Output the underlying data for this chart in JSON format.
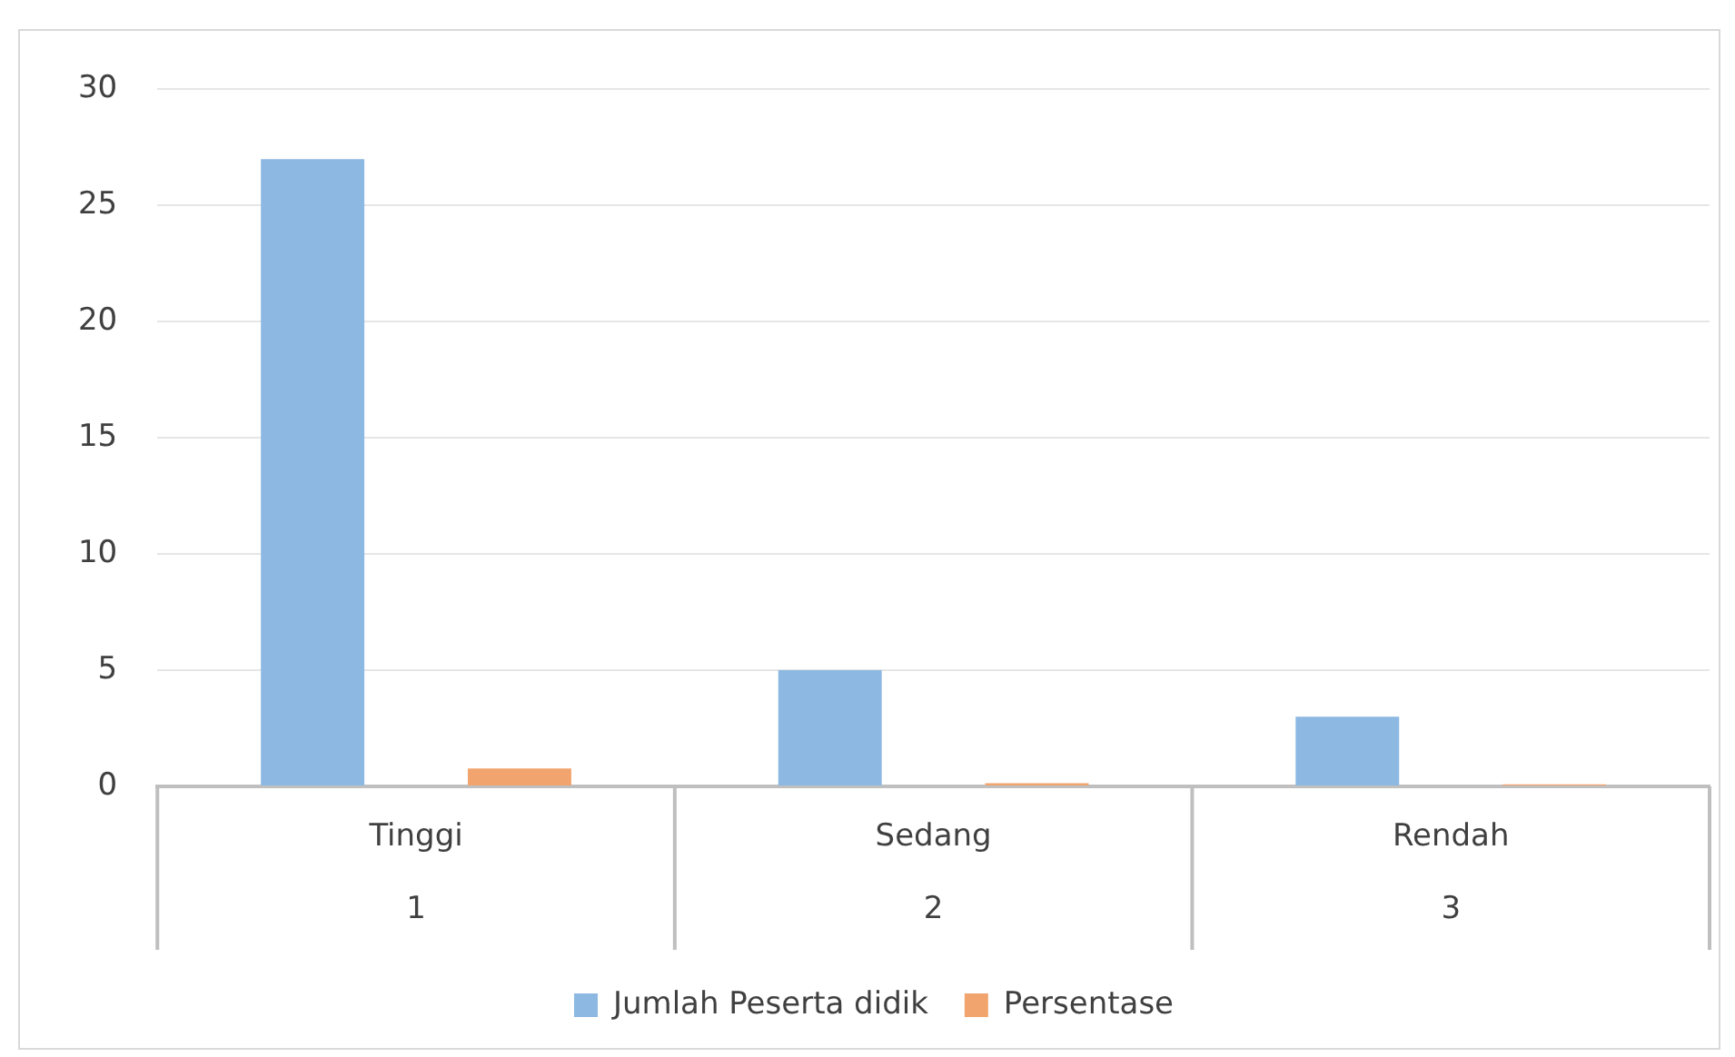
{
  "chart_data": {
    "type": "bar",
    "categories": [
      "Tinggi",
      "Sedang",
      "Rendah"
    ],
    "series": [
      {
        "name": "Jumlah Peserta didik",
        "color": "#8cb8e2",
        "values": [
          27,
          5,
          3
        ]
      },
      {
        "name": "Persentase",
        "color": "#f2a46e",
        "values": [
          0.77,
          0.14,
          0.09
        ]
      }
    ],
    "annotations": [
      "1",
      "2",
      "3"
    ],
    "ylim": [
      0,
      30
    ],
    "yticks": [
      0,
      5,
      10,
      15,
      20,
      25,
      30
    ],
    "grid": "y",
    "legend": "bottom"
  }
}
